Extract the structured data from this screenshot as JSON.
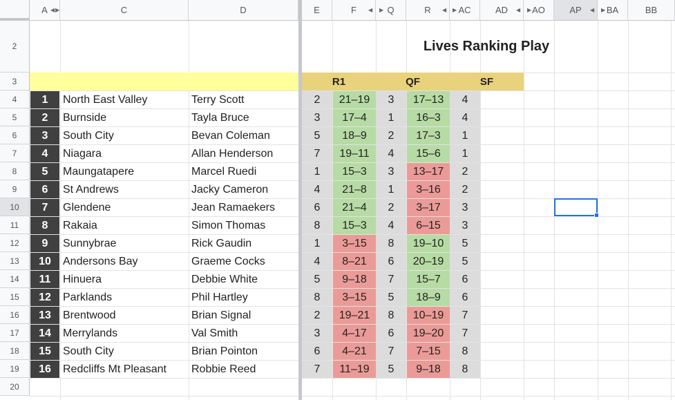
{
  "columns": [
    "A",
    "C",
    "D",
    "E",
    "F",
    "Q",
    "R",
    "AC",
    "AD",
    "AO",
    "AP",
    "BA",
    "BB"
  ],
  "rows": [
    "2",
    "3",
    "4",
    "5",
    "6",
    "7",
    "8",
    "9",
    "10",
    "11",
    "12",
    "13",
    "14",
    "15",
    "16",
    "17",
    "18",
    "19",
    "20"
  ],
  "selected_column": "AP",
  "selected_row": "10",
  "title": "Lives Ranking Play",
  "headers": {
    "r1": "R1",
    "qf": "QF",
    "sf": "SF"
  },
  "entries": [
    {
      "rank": "1",
      "team": "North East Valley",
      "player": "Terry Scott",
      "e": "2",
      "f": "21–19",
      "f_result": "win",
      "q": "3",
      "r": "17–13",
      "r_result": "win",
      "ac": "4"
    },
    {
      "rank": "2",
      "team": "Burnside",
      "player": "Tayla Bruce",
      "e": "3",
      "f": "17–4",
      "f_result": "win",
      "q": "1",
      "r": "16–3",
      "r_result": "win",
      "ac": "4"
    },
    {
      "rank": "3",
      "team": "South City",
      "player": "Bevan Coleman",
      "e": "5",
      "f": "18–9",
      "f_result": "win",
      "q": "2",
      "r": "17–3",
      "r_result": "win",
      "ac": "1"
    },
    {
      "rank": "4",
      "team": "Niagara",
      "player": "Allan Henderson",
      "e": "7",
      "f": "19–11",
      "f_result": "win",
      "q": "4",
      "r": "15–6",
      "r_result": "win",
      "ac": "1"
    },
    {
      "rank": "5",
      "team": "Maungatapere",
      "player": "Marcel Ruedi",
      "e": "1",
      "f": "15–3",
      "f_result": "win",
      "q": "3",
      "r": "13–17",
      "r_result": "loss",
      "ac": "2"
    },
    {
      "rank": "6",
      "team": "St Andrews",
      "player": "Jacky Cameron",
      "e": "4",
      "f": "21–8",
      "f_result": "win",
      "q": "1",
      "r": "3–16",
      "r_result": "loss",
      "ac": "2"
    },
    {
      "rank": "7",
      "team": "Glendene",
      "player": "Jean Ramaekers",
      "e": "6",
      "f": "21–4",
      "f_result": "win",
      "q": "2",
      "r": "3–17",
      "r_result": "loss",
      "ac": "3"
    },
    {
      "rank": "8",
      "team": "Rakaia",
      "player": "Simon Thomas",
      "e": "8",
      "f": "15–3",
      "f_result": "win",
      "q": "4",
      "r": "6–15",
      "r_result": "loss",
      "ac": "3"
    },
    {
      "rank": "9",
      "team": "Sunnybrae",
      "player": "Rick Gaudin",
      "e": "1",
      "f": "3–15",
      "f_result": "loss",
      "q": "8",
      "r": "19–10",
      "r_result": "win",
      "ac": "5"
    },
    {
      "rank": "10",
      "team": "Andersons Bay",
      "player": "Graeme Cocks",
      "e": "4",
      "f": "8–21",
      "f_result": "loss",
      "q": "6",
      "r": "20–19",
      "r_result": "win",
      "ac": "5"
    },
    {
      "rank": "11",
      "team": "Hinuera",
      "player": "Debbie White",
      "e": "5",
      "f": "9–18",
      "f_result": "loss",
      "q": "7",
      "r": "15–7",
      "r_result": "win",
      "ac": "6"
    },
    {
      "rank": "12",
      "team": "Parklands",
      "player": "Phil Hartley",
      "e": "8",
      "f": "3–15",
      "f_result": "loss",
      "q": "5",
      "r": "18–9",
      "r_result": "win",
      "ac": "6"
    },
    {
      "rank": "13",
      "team": "Brentwood",
      "player": "Brian Signal",
      "e": "2",
      "f": "19–21",
      "f_result": "loss",
      "q": "8",
      "r": "10–19",
      "r_result": "loss",
      "ac": "7"
    },
    {
      "rank": "14",
      "team": "Merrylands",
      "player": "Val Smith",
      "e": "3",
      "f": "4–17",
      "f_result": "loss",
      "q": "6",
      "r": "19–20",
      "r_result": "loss",
      "ac": "7"
    },
    {
      "rank": "15",
      "team": "South City",
      "player": "Brian Pointon",
      "e": "6",
      "f": "4–21",
      "f_result": "loss",
      "q": "7",
      "r": "7–15",
      "r_result": "loss",
      "ac": "8"
    },
    {
      "rank": "16",
      "team": "Redcliffs Mt Pleasant",
      "player": "Robbie Reed",
      "e": "7",
      "f": "11–19",
      "f_result": "loss",
      "q": "5",
      "r": "9–18",
      "r_result": "loss",
      "ac": "8"
    }
  ],
  "colors": {
    "win": "#b7dba4",
    "loss": "#eb9b97",
    "grey": "#dcdcdc",
    "rank_bg": "#404040",
    "header_band": "#e9d27c",
    "yellow_band": "#ffff9c",
    "selection": "#1a73e8"
  }
}
